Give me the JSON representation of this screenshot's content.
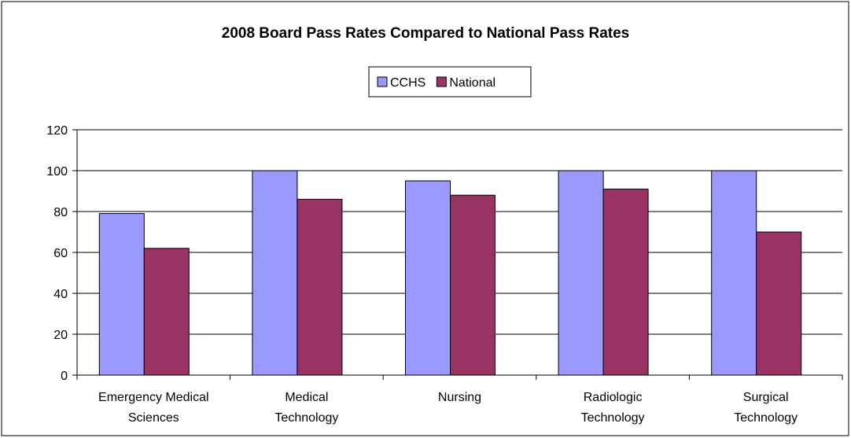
{
  "chart_data": {
    "type": "bar",
    "title": "2008 Board Pass Rates Compared to National Pass Rates",
    "categories": [
      "Emergency Medical\nSciences",
      "Medical\nTechnology",
      "Nursing",
      "Radiologic\nTechnology",
      "Surgical\nTechnology"
    ],
    "series": [
      {
        "name": "CCHS",
        "color": "#9999ff",
        "values": [
          79,
          100,
          95,
          100,
          100
        ]
      },
      {
        "name": "National",
        "color": "#993366",
        "values": [
          62,
          86,
          88,
          91,
          70
        ]
      }
    ],
    "ylim": [
      0,
      120
    ],
    "yticks": [
      0,
      20,
      40,
      60,
      80,
      100,
      120
    ],
    "grid": true,
    "legend": "top"
  }
}
